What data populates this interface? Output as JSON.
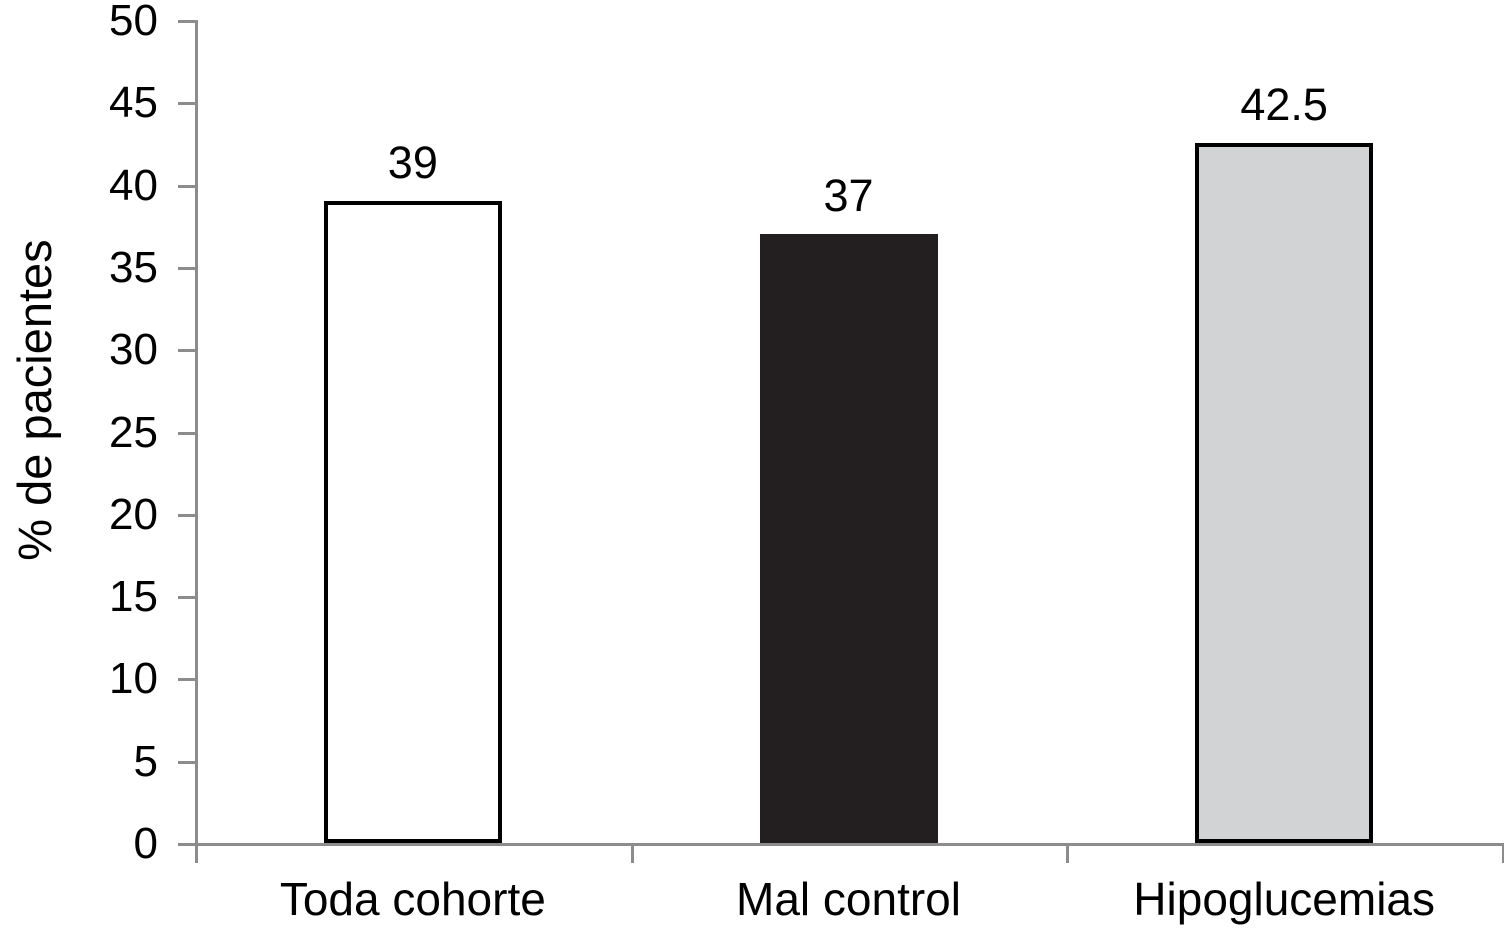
{
  "chart_data": {
    "type": "bar",
    "title": "",
    "xlabel": "",
    "ylabel": "% de pacientes",
    "categories": [
      "Toda cohorte",
      "Mal control",
      "Hipoglucemias"
    ],
    "values": [
      39,
      37,
      42.5
    ],
    "value_labels": [
      "39",
      "37",
      "42.5"
    ],
    "ylim": [
      0,
      50
    ],
    "ytick_step": 5,
    "ytick_labels": [
      "0",
      "5",
      "10",
      "15",
      "20",
      "25",
      "30",
      "35",
      "40",
      "45",
      "50"
    ],
    "grid": false,
    "legend": false,
    "bar_styles": [
      {
        "name": "toda-cohorte-bar",
        "fill": "#ffffff",
        "border": "#000000"
      },
      {
        "name": "mal-control-bar",
        "fill": "#231f20",
        "border": "#231f20"
      },
      {
        "name": "hipoglucemias-bar",
        "fill": "#d1d3d4",
        "border": "#000000"
      }
    ],
    "axis_color": "#8c8c8c",
    "text_color": "#000000",
    "background_color": "#ffffff"
  }
}
